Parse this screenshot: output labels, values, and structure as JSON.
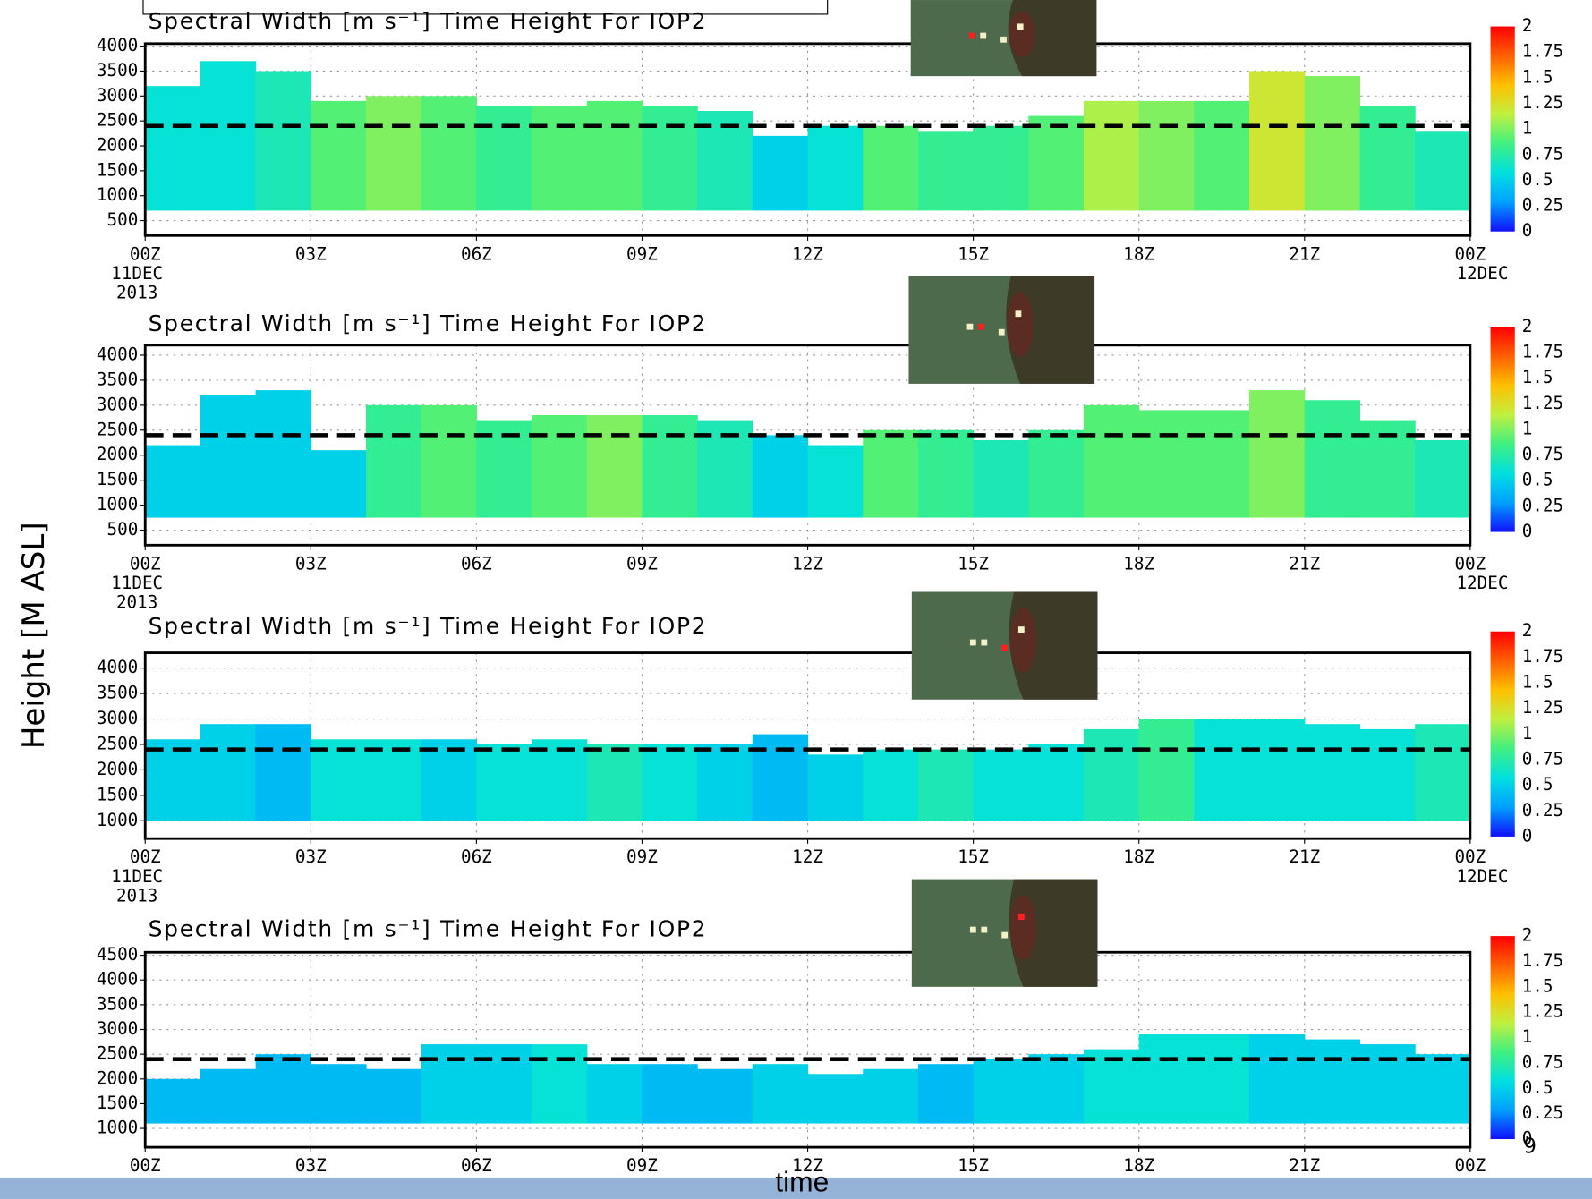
{
  "y_axis_label": "Height [M ASL]",
  "x_axis_label": "time",
  "slide_number": "9",
  "chart_data": [
    {
      "type": "heatmap",
      "title": "Spectral Width [m s⁻¹] Time Height For IOP2",
      "x": [
        0,
        1,
        2,
        3,
        4,
        5,
        6,
        7,
        8,
        9,
        10,
        11,
        12,
        13,
        14,
        15,
        16,
        17,
        18,
        19,
        20,
        21,
        22,
        23
      ],
      "tops": [
        3200,
        3700,
        3500,
        2900,
        3000,
        3000,
        2800,
        2800,
        2900,
        2800,
        2700,
        2200,
        2400,
        2400,
        2300,
        2400,
        2600,
        2900,
        2900,
        2900,
        3500,
        3400,
        2800,
        2300
      ],
      "widths": [
        0.6,
        0.6,
        0.7,
        0.9,
        1.0,
        0.9,
        0.8,
        0.9,
        0.9,
        0.8,
        0.7,
        0.5,
        0.6,
        0.9,
        0.8,
        0.8,
        0.9,
        1.1,
        1.0,
        0.9,
        1.2,
        1.0,
        0.8,
        0.7
      ],
      "base": 700,
      "ref_line": 2400,
      "xlim": [
        0,
        24
      ],
      "xticks": [
        {
          "value": 0,
          "label": "00Z"
        },
        {
          "value": 3,
          "label": "03Z"
        },
        {
          "value": 6,
          "label": "06Z"
        },
        {
          "value": 9,
          "label": "09Z"
        },
        {
          "value": 12,
          "label": "12Z"
        },
        {
          "value": 15,
          "label": "15Z"
        },
        {
          "value": 18,
          "label": "18Z"
        },
        {
          "value": 21,
          "label": "21Z"
        },
        {
          "value": 24,
          "label": "00Z"
        }
      ],
      "start_date": [
        "11DEC",
        "2013"
      ],
      "end_date": "12DEC",
      "ylim": [
        200,
        4050
      ],
      "yticks": [
        500,
        1000,
        1500,
        2000,
        2500,
        3000,
        3500,
        4000
      ],
      "grid": true,
      "clim": [
        0,
        2
      ],
      "cticks": [
        0,
        0.25,
        0.5,
        0.75,
        1,
        1.25,
        1.5,
        1.75,
        2
      ],
      "colors": [
        "#1010ff",
        "#00a0ff",
        "#00e0e0",
        "#40f080",
        "#c0f040",
        "#ffc000",
        "#ff6000",
        "#ff0000"
      ]
    },
    {
      "type": "heatmap",
      "title": "Spectral Width [m s⁻¹] Time Height For IOP2",
      "x": [
        0,
        1,
        2,
        3,
        4,
        5,
        6,
        7,
        8,
        9,
        10,
        11,
        12,
        13,
        14,
        15,
        16,
        17,
        18,
        19,
        20,
        21,
        22,
        23
      ],
      "tops": [
        2200,
        3200,
        3300,
        2100,
        3000,
        3000,
        2700,
        2800,
        2800,
        2800,
        2700,
        2400,
        2200,
        2500,
        2500,
        2300,
        2500,
        3000,
        2900,
        2900,
        3300,
        3100,
        2700,
        2300
      ],
      "widths": [
        0.5,
        0.5,
        0.5,
        0.5,
        0.8,
        0.9,
        0.8,
        0.9,
        1.0,
        0.8,
        0.7,
        0.5,
        0.6,
        0.9,
        0.8,
        0.7,
        0.8,
        0.9,
        0.9,
        0.9,
        1.0,
        0.8,
        0.8,
        0.7
      ],
      "base": 750,
      "ref_line": 2400,
      "xlim": [
        0,
        24
      ],
      "xticks": [
        {
          "value": 0,
          "label": "00Z"
        },
        {
          "value": 3,
          "label": "03Z"
        },
        {
          "value": 6,
          "label": "06Z"
        },
        {
          "value": 9,
          "label": "09Z"
        },
        {
          "value": 12,
          "label": "12Z"
        },
        {
          "value": 15,
          "label": "15Z"
        },
        {
          "value": 18,
          "label": "18Z"
        },
        {
          "value": 21,
          "label": "21Z"
        },
        {
          "value": 24,
          "label": "00Z"
        }
      ],
      "start_date": [
        "11DEC",
        "2013"
      ],
      "end_date": "12DEC",
      "ylim": [
        200,
        4200
      ],
      "yticks": [
        500,
        1000,
        1500,
        2000,
        2500,
        3000,
        3500,
        4000
      ],
      "grid": true,
      "clim": [
        0,
        2
      ],
      "cticks": [
        0,
        0.25,
        0.5,
        0.75,
        1,
        1.25,
        1.5,
        1.75,
        2
      ],
      "colors": [
        "#1010ff",
        "#00a0ff",
        "#00e0e0",
        "#40f080",
        "#c0f040",
        "#ffc000",
        "#ff6000",
        "#ff0000"
      ]
    },
    {
      "type": "heatmap",
      "title": "Spectral Width [m s⁻¹] Time Height For IOP2",
      "x": [
        0,
        1,
        2,
        3,
        4,
        5,
        6,
        7,
        8,
        9,
        10,
        11,
        12,
        13,
        14,
        15,
        16,
        17,
        18,
        19,
        20,
        21,
        22,
        23
      ],
      "tops": [
        2600,
        2900,
        2900,
        2600,
        2600,
        2600,
        2500,
        2600,
        2500,
        2500,
        2500,
        2700,
        2300,
        2400,
        2400,
        2400,
        2500,
        2800,
        3000,
        3000,
        3000,
        2900,
        2800,
        2900
      ],
      "widths": [
        0.5,
        0.5,
        0.4,
        0.6,
        0.6,
        0.5,
        0.6,
        0.6,
        0.7,
        0.6,
        0.5,
        0.4,
        0.5,
        0.6,
        0.7,
        0.6,
        0.6,
        0.7,
        0.8,
        0.6,
        0.6,
        0.6,
        0.6,
        0.7
      ],
      "base": 1000,
      "ref_line": 2400,
      "xlim": [
        0,
        24
      ],
      "xticks": [
        {
          "value": 0,
          "label": "00Z"
        },
        {
          "value": 3,
          "label": "03Z"
        },
        {
          "value": 6,
          "label": "06Z"
        },
        {
          "value": 9,
          "label": "09Z"
        },
        {
          "value": 12,
          "label": "12Z"
        },
        {
          "value": 15,
          "label": "15Z"
        },
        {
          "value": 18,
          "label": "18Z"
        },
        {
          "value": 21,
          "label": "21Z"
        },
        {
          "value": 24,
          "label": "00Z"
        }
      ],
      "start_date": [
        "11DEC",
        "2013"
      ],
      "end_date": "12DEC",
      "ylim": [
        650,
        4300
      ],
      "yticks": [
        1000,
        1500,
        2000,
        2500,
        3000,
        3500,
        4000
      ],
      "grid": true,
      "clim": [
        0,
        2
      ],
      "cticks": [
        0,
        0.25,
        0.5,
        0.75,
        1,
        1.25,
        1.5,
        1.75,
        2
      ],
      "colors": [
        "#1010ff",
        "#00a0ff",
        "#00e0e0",
        "#40f080",
        "#c0f040",
        "#ffc000",
        "#ff6000",
        "#ff0000"
      ]
    },
    {
      "type": "heatmap",
      "title": "Spectral Width [m s⁻¹] Time Height For IOP2",
      "x": [
        0,
        1,
        2,
        3,
        4,
        5,
        6,
        7,
        8,
        9,
        10,
        11,
        12,
        13,
        14,
        15,
        16,
        17,
        18,
        19,
        20,
        21,
        22,
        23
      ],
      "tops": [
        2000,
        2200,
        2500,
        2300,
        2200,
        2700,
        2700,
        2700,
        2300,
        2300,
        2200,
        2300,
        2100,
        2200,
        2300,
        2400,
        2500,
        2600,
        2900,
        2900,
        2900,
        2800,
        2700,
        2500
      ],
      "widths": [
        0.4,
        0.4,
        0.4,
        0.4,
        0.4,
        0.5,
        0.5,
        0.6,
        0.5,
        0.4,
        0.4,
        0.5,
        0.5,
        0.5,
        0.4,
        0.5,
        0.5,
        0.6,
        0.6,
        0.6,
        0.5,
        0.5,
        0.5,
        0.5
      ],
      "base": 1100,
      "ref_line": 2400,
      "xlim": [
        0,
        24
      ],
      "xticks": [
        {
          "value": 0,
          "label": "00Z"
        },
        {
          "value": 3,
          "label": "03Z"
        },
        {
          "value": 6,
          "label": "06Z"
        },
        {
          "value": 9,
          "label": "09Z"
        },
        {
          "value": 12,
          "label": "12Z"
        },
        {
          "value": 15,
          "label": "15Z"
        },
        {
          "value": 18,
          "label": "18Z"
        },
        {
          "value": 21,
          "label": "21Z"
        },
        {
          "value": 24,
          "label": "00Z"
        }
      ],
      "ylim": [
        620,
        4560
      ],
      "yticks": [
        1000,
        1500,
        2000,
        2500,
        3000,
        3500,
        4000,
        4500
      ],
      "grid": true,
      "clim": [
        0,
        2
      ],
      "cticks": [
        0,
        0.25,
        0.5,
        0.75,
        1,
        1.25,
        1.5,
        1.75,
        2
      ],
      "colors": [
        "#1010ff",
        "#00a0ff",
        "#00e0e0",
        "#40f080",
        "#c0f040",
        "#ffc000",
        "#ff6000",
        "#ff0000"
      ]
    }
  ]
}
